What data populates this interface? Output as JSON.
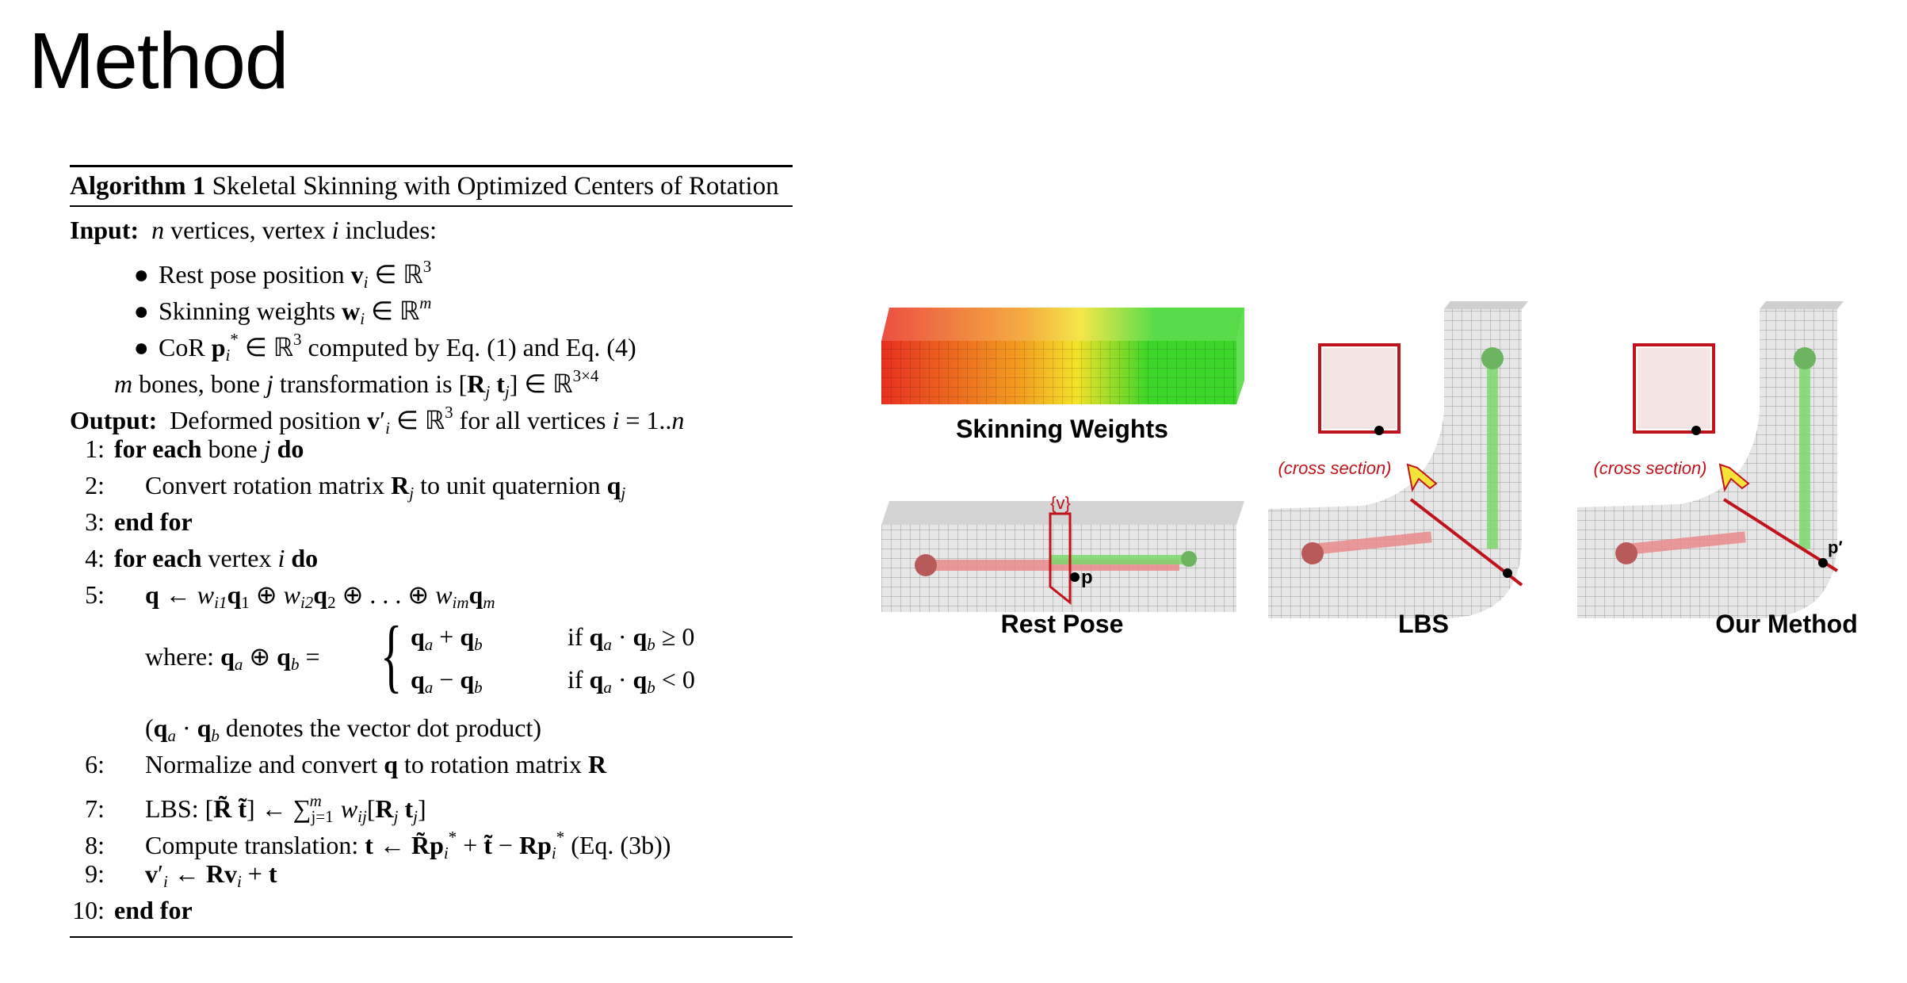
{
  "page": {
    "title": "Method"
  },
  "algorithm": {
    "label": "Algorithm 1",
    "name": "Skeletal Skinning with Optimized Centers of Rotation",
    "input_label": "Input:",
    "input_text": "n vertices, vertex i includes:",
    "bullets": [
      {
        "text": "Rest pose position",
        "sym": "v",
        "sub": "i",
        "rest": "∈ ℝ",
        "sup": "3"
      },
      {
        "text": "Skinning weights",
        "sym": "w",
        "sub": "i",
        "rest": "∈ ℝ",
        "sup": "m"
      },
      {
        "text": "CoR",
        "sym": "p",
        "sub": "i",
        "rest": "∈ ℝ",
        "sup": "3",
        "tail": "computed by Eq. (1) and Eq. (4)"
      }
    ],
    "bones_line": "m bones, bone j transformation is [R_j t_j] ∈ ℝ^{3×4}",
    "output_label": "Output:",
    "output_text": "Deformed position v′_i ∈ ℝ³ for all vertices i = 1..n",
    "lines": [
      {
        "num": "1:",
        "text": "for each bone j do"
      },
      {
        "num": "2:",
        "text": "Convert rotation matrix R_j to unit quaternion q_j"
      },
      {
        "num": "3:",
        "text": "end for"
      },
      {
        "num": "4:",
        "text": "for each vertex i do"
      },
      {
        "num": "5:",
        "text": "q ← w_i1 q_1 ⊕ w_i2 q_2 ⊕ … ⊕ w_im q_m"
      },
      {
        "num": "6:",
        "text": "Normalize and convert q to rotation matrix R"
      },
      {
        "num": "7:",
        "text": "LBS: [R̃ t̃] ← Σ_{j=1}^{m} w_ij [R_j t_j]"
      },
      {
        "num": "8:",
        "text": "Compute translation: t ← R̃p*_i + t̃ − Rp*_i (Eq. (3b))"
      },
      {
        "num": "9:",
        "text": "v′_i ← Rv_i + t"
      },
      {
        "num": "10:",
        "text": "end for"
      }
    ],
    "where_label": "where:",
    "case1_expr": "q_a + q_b",
    "case1_cond": "if q_a · q_b ≥ 0",
    "case2_expr": "q_a − q_b",
    "case2_cond": "if q_a · q_b < 0",
    "dot_note": "(q_a · q_b denotes the vector dot product)"
  },
  "figure": {
    "skinning_weights_label": "Skinning Weights",
    "rest_pose_label": "Rest Pose",
    "lbs_label": "LBS",
    "our_method_label": "Our Method",
    "cross_section_label": "(cross section)",
    "point_label": "p",
    "point_prime_label": "p′",
    "plane_label": "{v}",
    "colors": {
      "weight_red": "#e83020",
      "weight_yellow": "#f3e22a",
      "weight_green": "#3dd62a",
      "section_red": "#c0141c",
      "arrow_yellow": "#f6e33a"
    }
  }
}
